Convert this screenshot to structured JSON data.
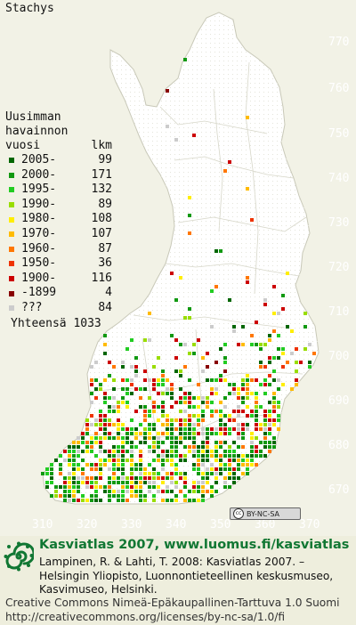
{
  "map": {
    "title": "Stachys",
    "y_ticks": [
      "770",
      "760",
      "750",
      "740",
      "730",
      "720",
      "710",
      "700",
      "690",
      "680",
      "670"
    ],
    "x_ticks": [
      "310",
      "320",
      "330",
      "340",
      "350",
      "360",
      "370"
    ],
    "land_color": "#ffffff",
    "border_color": "#c8c8b8",
    "legend": {
      "heading_line1": "Uusimman",
      "heading_line2": "havainnon",
      "heading_line3": "vuosi",
      "count_heading": "lkm",
      "items": [
        {
          "label": "2005-",
          "count": "99",
          "color": "#006600"
        },
        {
          "label": "2000-",
          "count": "171",
          "color": "#119911"
        },
        {
          "label": "1995-",
          "count": "132",
          "color": "#22cc22"
        },
        {
          "label": "1990-",
          "count": "89",
          "color": "#99dd00"
        },
        {
          "label": "1980-",
          "count": "108",
          "color": "#ffee00"
        },
        {
          "label": "1970-",
          "count": "107",
          "color": "#ffbb00"
        },
        {
          "label": "1960-",
          "count": "87",
          "color": "#ff7700"
        },
        {
          "label": "1950-",
          "count": "36",
          "color": "#ee3300"
        },
        {
          "label": "1900-",
          "count": "116",
          "color": "#cc0000"
        },
        {
          "label": "-1899",
          "count": "4",
          "color": "#880000"
        },
        {
          "label": "???",
          "count": "84",
          "color": "#cccccc"
        }
      ],
      "total_label": "Yhteensä",
      "total_count": "1033"
    },
    "cc_badge": "BY-NC-SA",
    "cc_mark": "cc"
  },
  "footer": {
    "brand": "Kasviatlas 2007, www.luomus.fi/kasviatlas",
    "cite_line1": "Lampinen, R. & Lahti, T. 2008: Kasviatlas 2007. –",
    "cite_line2": "Helsingin Yliopisto, Luonnontieteellinen keskusmuseo,",
    "cite_line3": "Kasvimuseo, Helsinki.",
    "license_line1": "Creative Commons Nimeä-Epäkaupallinen-Tarttuva 1.0 Suomi",
    "license_line2": "http://creativecommons.org/licenses/by-nc-sa/1.0/fi",
    "logo_color": "#117733"
  }
}
